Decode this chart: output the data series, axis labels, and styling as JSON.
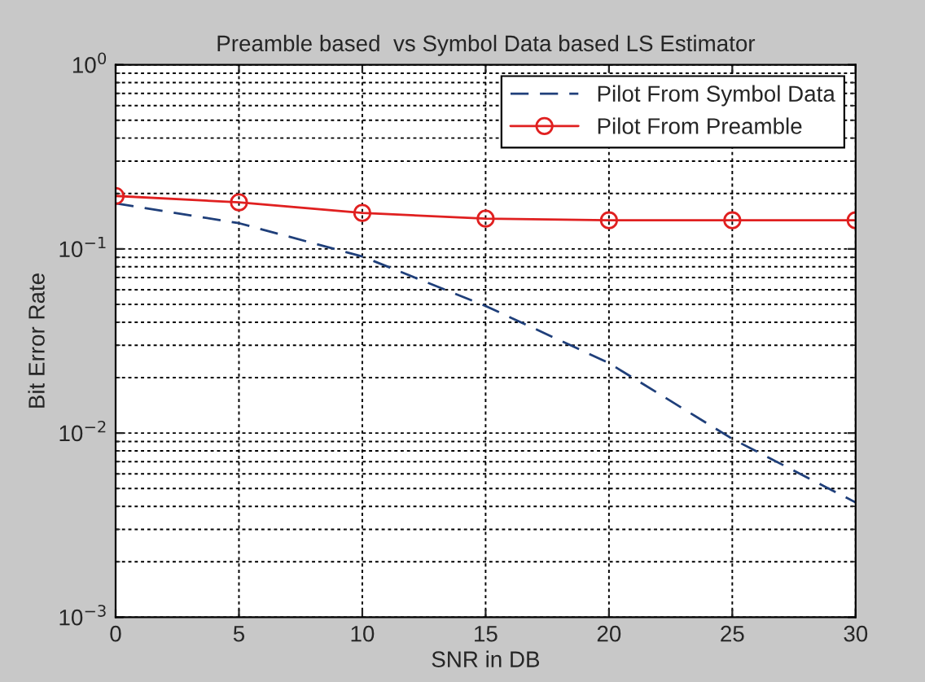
{
  "chart_data": {
    "type": "line",
    "title": "Preamble based  vs Symbol Data based LS Estimator",
    "xlabel": "SNR in DB",
    "ylabel": "Bit Error Rate",
    "x": [
      0,
      5,
      10,
      15,
      20,
      25,
      30
    ],
    "series": [
      {
        "name": "Pilot From Symbol Data",
        "color": "#1f3f7a",
        "line_style": "dashed",
        "marker": "none",
        "values": [
          0.177,
          0.138,
          0.091,
          0.049,
          0.024,
          0.0093,
          0.0042
        ]
      },
      {
        "name": "Pilot From Preamble",
        "color": "#e02020",
        "line_style": "solid",
        "marker": "circle",
        "values": [
          0.194,
          0.179,
          0.157,
          0.146,
          0.143,
          0.143,
          0.143
        ]
      }
    ],
    "log": "y",
    "xlim": [
      0,
      30
    ],
    "xticks": [
      0,
      5,
      10,
      15,
      20,
      25,
      30
    ],
    "ylim": [
      0.001,
      1
    ],
    "yticks": [
      {
        "value": 0.001,
        "label": "10$^{−3}$"
      },
      {
        "value": 0.01,
        "label": "10$^{−2}$"
      },
      {
        "value": 0.1,
        "label": "10$^{−1}$"
      },
      {
        "value": 1,
        "label": "10$^{0}$"
      }
    ],
    "grid": true,
    "legend": "top right"
  }
}
